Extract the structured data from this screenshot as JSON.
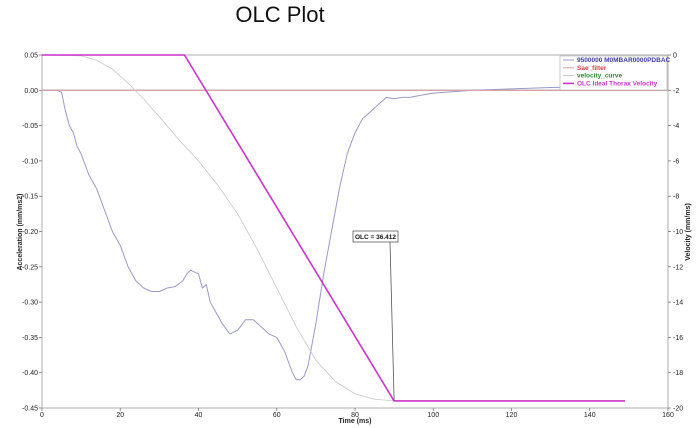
{
  "chart_data": {
    "type": "line",
    "title": "OLC Plot",
    "xlabel": "Time (ms)",
    "ylabel_left": "Acceleration (mm/ms2)",
    "ylabel_right": "Velocity (mm/ms)",
    "xlim": [
      0,
      160
    ],
    "ylim_left": [
      -0.45,
      0.05
    ],
    "ylim_right": [
      -20,
      0
    ],
    "x_ticks": [
      "0",
      "20",
      "40",
      "60",
      "80",
      "100",
      "120",
      "140",
      "160"
    ],
    "y_left_ticks": [
      "0.05",
      "0.00",
      "-0.05",
      "-0.10",
      "-0.15",
      "-0.20",
      "-0.25",
      "-0.30",
      "-0.35",
      "-0.40",
      "-0.45"
    ],
    "y_right_ticks": [
      "0",
      "-2",
      "-4",
      "-6",
      "-8",
      "-10",
      "-12",
      "-14",
      "-16",
      "-18",
      "-20"
    ],
    "grid": false,
    "legend_position": "top-right",
    "series": [
      {
        "name": "9500000 M0MBAR0000PDBAC",
        "axis": "left",
        "color": "#9a9ac8",
        "x": [
          0,
          4,
          5,
          6,
          7,
          8,
          9,
          10,
          12,
          14,
          16,
          18,
          20,
          22,
          24,
          26,
          28,
          30,
          32,
          34,
          36,
          37,
          38,
          40,
          41,
          42,
          43,
          44,
          46,
          48,
          50,
          52,
          54,
          56,
          58,
          60,
          62,
          64,
          65,
          66,
          67,
          68,
          70,
          72,
          74,
          76,
          78,
          80,
          82,
          84,
          86,
          88,
          90,
          92,
          94,
          96,
          98,
          100,
          110,
          120,
          130,
          140,
          149
        ],
        "y": [
          0.0,
          0.0,
          -0.003,
          -0.03,
          -0.05,
          -0.06,
          -0.08,
          -0.09,
          -0.12,
          -0.14,
          -0.17,
          -0.2,
          -0.22,
          -0.25,
          -0.27,
          -0.28,
          -0.285,
          -0.285,
          -0.28,
          -0.278,
          -0.27,
          -0.26,
          -0.255,
          -0.26,
          -0.28,
          -0.275,
          -0.3,
          -0.31,
          -0.33,
          -0.345,
          -0.34,
          -0.325,
          -0.325,
          -0.335,
          -0.345,
          -0.35,
          -0.37,
          -0.4,
          -0.41,
          -0.41,
          -0.405,
          -0.39,
          -0.33,
          -0.26,
          -0.2,
          -0.14,
          -0.09,
          -0.06,
          -0.04,
          -0.03,
          -0.02,
          -0.01,
          -0.012,
          -0.01,
          -0.01,
          -0.008,
          -0.006,
          -0.004,
          0.0,
          0.002,
          0.004,
          0.005,
          0.006
        ]
      },
      {
        "name": "Sae_filter",
        "axis": "left",
        "color": "#e0a0a0",
        "x": [
          0,
          160
        ],
        "y": [
          0.0,
          0.0
        ]
      },
      {
        "name": "velocity_curve",
        "axis": "right",
        "color": "#c8c8c8",
        "x": [
          0,
          10,
          14,
          18,
          22,
          26,
          30,
          35,
          40,
          45,
          50,
          55,
          60,
          65,
          70,
          75,
          80,
          85,
          90,
          100,
          149
        ],
        "y": [
          0.0,
          -0.05,
          -0.3,
          -0.8,
          -1.6,
          -2.5,
          -3.5,
          -4.8,
          -6.0,
          -7.4,
          -9.0,
          -11.0,
          -13.2,
          -15.4,
          -17.3,
          -18.5,
          -19.2,
          -19.5,
          -19.6,
          -19.6,
          -19.6
        ]
      },
      {
        "name": "OLC Ideal Thorax Velocity",
        "axis": "right",
        "color": "#cc33cc",
        "x": [
          0,
          36.412,
          90,
          149
        ],
        "y": [
          0.0,
          0.0,
          -19.6,
          -19.6
        ]
      }
    ],
    "legend": [
      {
        "label": "9500000 M0MBAR0000PDBAC",
        "color": "#3a3aa8"
      },
      {
        "label": "Sae_filter",
        "color": "#d04040"
      },
      {
        "label": "velocity_curve",
        "color": "#2a8a2a"
      },
      {
        "label": "OLC Ideal Thorax Velocity",
        "color": "#cc33cc"
      }
    ],
    "annotation": {
      "text": "OLC = 36.412",
      "target_x": 90,
      "target_y_right": -19.6
    }
  }
}
